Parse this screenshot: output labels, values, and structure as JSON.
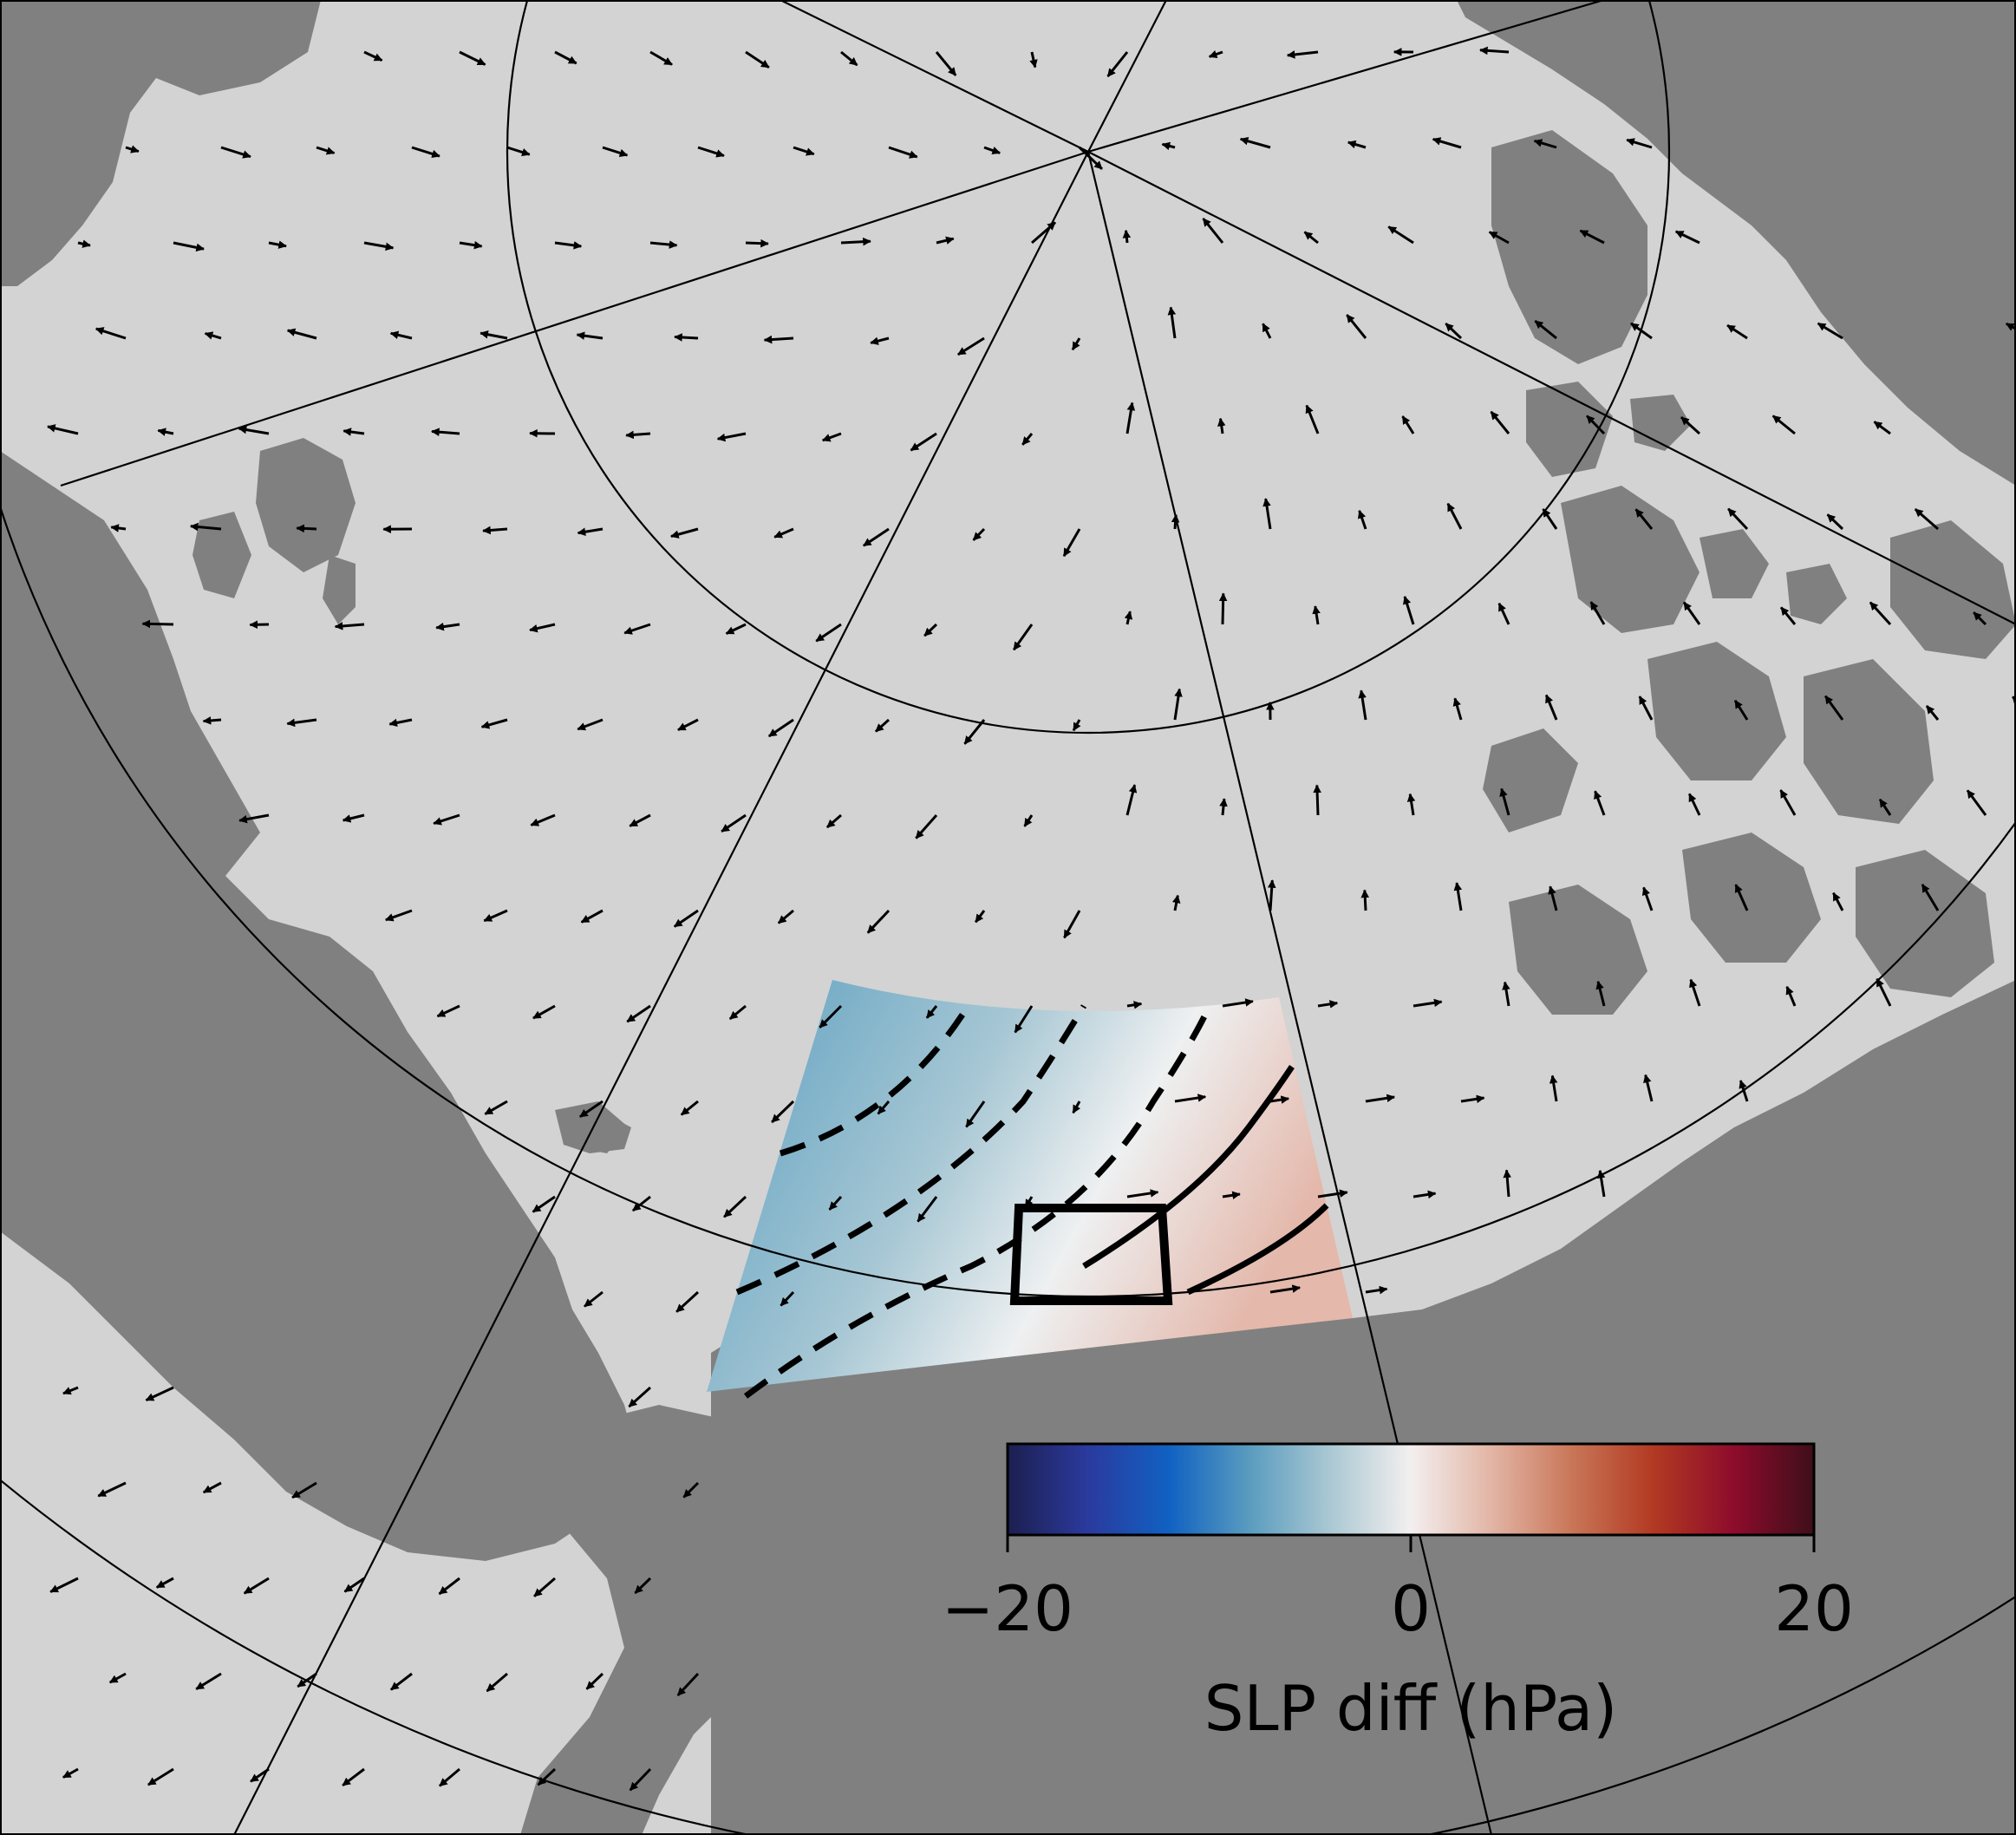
{
  "colorbar": {
    "label": "SLP diff (hPa)",
    "ticks": [
      {
        "value": -20,
        "label": "−20"
      },
      {
        "value": 0,
        "label": "0"
      },
      {
        "value": 20,
        "label": "20"
      }
    ],
    "range": [
      -20,
      20
    ],
    "colormap": [
      "#1c1f4f",
      "#2b3a9e",
      "#1061c2",
      "#5a9cbf",
      "#aac8d3",
      "#f3efef",
      "#e2b5a5",
      "#c97658",
      "#b23a22",
      "#8e0c2c",
      "#3e0e1a"
    ]
  },
  "colors": {
    "background": "#ffffff",
    "ocean": "#d3d3d3",
    "land": "#808080",
    "vectors": "#000000",
    "graticule": "#000000",
    "box": "#000000"
  },
  "map_layers": {
    "land": "land-mass",
    "ocean": "ocean",
    "graticule": "graticule-lines",
    "wind_vectors": "wind-vector-arrows",
    "slp_field": "slp-difference-field",
    "contours": "slp-contours",
    "region_box": "study-region-box"
  }
}
